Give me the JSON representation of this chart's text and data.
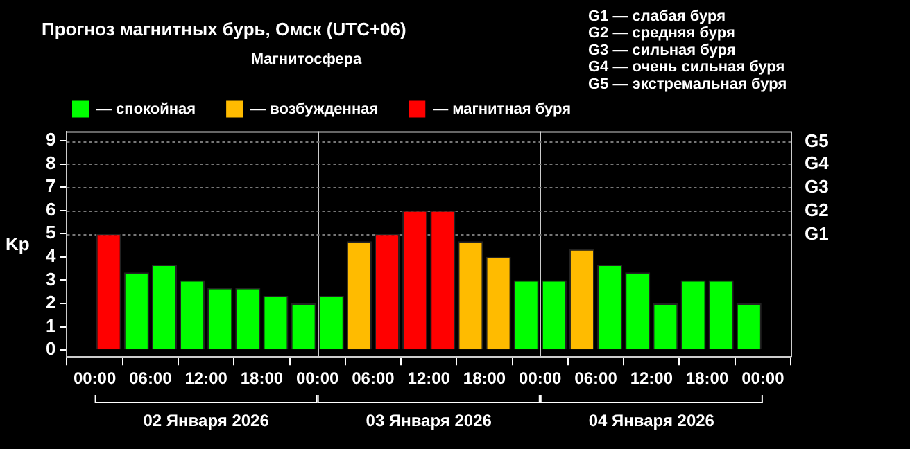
{
  "chart_data": {
    "type": "bar",
    "title": "Прогноз магнитных бурь, Омск (UTC+06)",
    "legend_title": "Магнитосфера",
    "ylabel": "Kp",
    "x": [
      "2026-01-02T01:30",
      "2026-01-02T04:30",
      "2026-01-02T07:30",
      "2026-01-02T10:30",
      "2026-01-02T13:30",
      "2026-01-02T16:30",
      "2026-01-02T19:30",
      "2026-01-02T22:30",
      "2026-01-03T01:30",
      "2026-01-03T04:30",
      "2026-01-03T07:30",
      "2026-01-03T10:30",
      "2026-01-03T13:30",
      "2026-01-03T16:30",
      "2026-01-03T19:30",
      "2026-01-03T22:30",
      "2026-01-04T01:30",
      "2026-01-04T04:30",
      "2026-01-04T07:30",
      "2026-01-04T10:30",
      "2026-01-04T13:30",
      "2026-01-04T16:30",
      "2026-01-04T19:30",
      "2026-01-04T22:30"
    ],
    "stacked": true,
    "series": [
      {
        "name": "— спокойная",
        "color": "#00ff00",
        "values": [
          null,
          3.33,
          3.67,
          3,
          2.67,
          2.67,
          2.33,
          2,
          2.33,
          null,
          null,
          null,
          null,
          null,
          null,
          3,
          3,
          null,
          3.67,
          3.33,
          2,
          3,
          3,
          2
        ]
      },
      {
        "name": "— возбужденная",
        "color": "#ffbb00",
        "values": [
          null,
          null,
          null,
          null,
          null,
          null,
          null,
          null,
          null,
          4.67,
          null,
          null,
          null,
          4.67,
          4,
          null,
          null,
          4.33,
          null,
          null,
          null,
          null,
          null,
          null
        ]
      },
      {
        "name": "— магнитная буря",
        "color": "#ff0000",
        "values": [
          5,
          null,
          null,
          null,
          null,
          null,
          null,
          null,
          null,
          null,
          5,
          6,
          6,
          null,
          null,
          null,
          null,
          null,
          null,
          null,
          null,
          null,
          null,
          null
        ]
      }
    ],
    "xlim": [
      "2026-01-02T00:00",
      "2026-01-05T00:00"
    ],
    "xticks": [
      {
        "value": "2026-01-02T00:00",
        "label": "00:00"
      },
      {
        "value": "2026-01-02T06:00",
        "label": "06:00"
      },
      {
        "value": "2026-01-02T12:00",
        "label": "12:00"
      },
      {
        "value": "2026-01-02T18:00",
        "label": "18:00"
      },
      {
        "value": "2026-01-03T00:00",
        "label": "00:00"
      },
      {
        "value": "2026-01-03T06:00",
        "label": "06:00"
      },
      {
        "value": "2026-01-03T12:00",
        "label": "12:00"
      },
      {
        "value": "2026-01-03T18:00",
        "label": "18:00"
      },
      {
        "value": "2026-01-04T00:00",
        "label": "00:00"
      },
      {
        "value": "2026-01-04T06:00",
        "label": "06:00"
      },
      {
        "value": "2026-01-04T12:00",
        "label": "12:00"
      },
      {
        "value": "2026-01-04T18:00",
        "label": "18:00"
      },
      {
        "value": "2026-01-05T00:00",
        "label": "00:00"
      }
    ],
    "ylim": [
      -0.3,
      9.4
    ],
    "yticks": [
      0,
      1,
      2,
      3,
      4,
      5,
      6,
      7,
      8,
      9
    ],
    "legend": "top left",
    "ref_lines": [
      {
        "axis": "x",
        "value": "2026-01-03T00:00",
        "color": "#cccccc"
      },
      {
        "axis": "x",
        "value": "2026-01-04T00:00",
        "color": "#cccccc"
      },
      {
        "axis": "y",
        "value": 5,
        "label": "G1",
        "color": "#777777",
        "line_style": "dotted"
      },
      {
        "axis": "y",
        "value": 6,
        "label": "G2",
        "color": "#777777",
        "line_style": "dotted"
      },
      {
        "axis": "y",
        "value": 7,
        "label": "G3",
        "color": "#777777",
        "line_style": "dotted"
      },
      {
        "axis": "y",
        "value": 8,
        "label": "G4",
        "color": "#777777",
        "line_style": "dotted"
      },
      {
        "axis": "y",
        "value": 9,
        "label": "G5",
        "color": "#777777",
        "line_style": "dotted"
      }
    ],
    "annotations": [
      "G1 — слабая буря",
      "G2 — средняя буря",
      "G3 — сильная буря",
      "G4 — очень сильная буря",
      "G5 — экстремальная буря",
      "02 Января 2026",
      "03 Января 2026",
      "04 Января 2026"
    ]
  }
}
